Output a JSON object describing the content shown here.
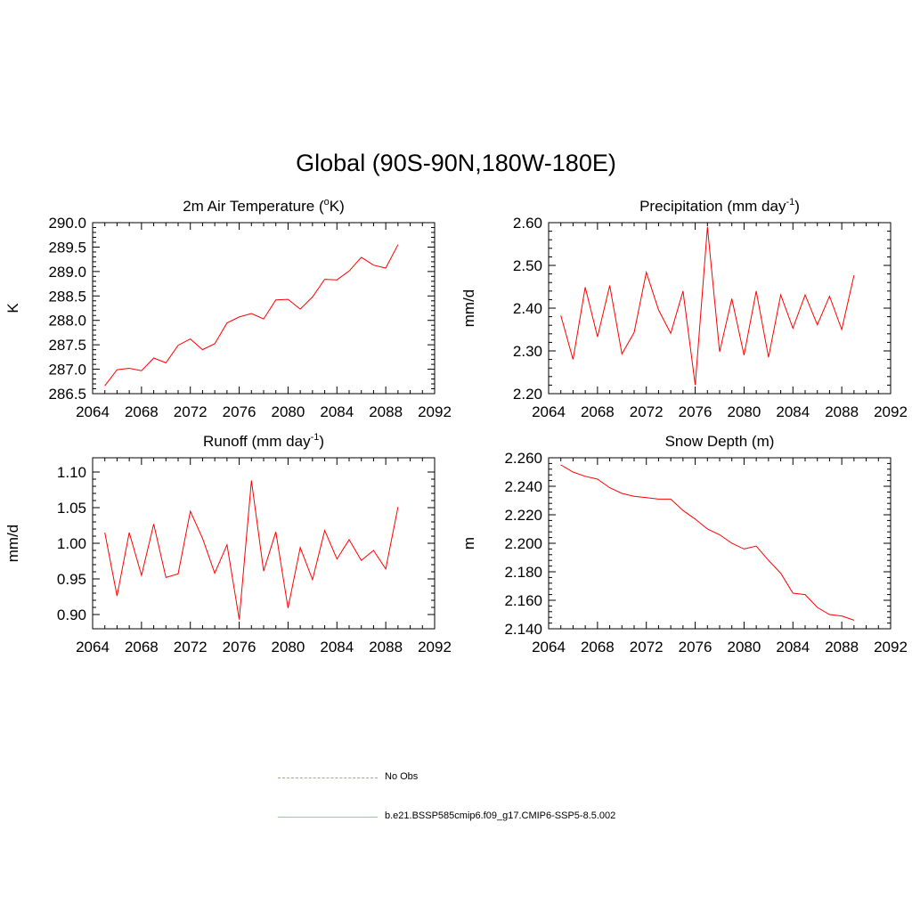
{
  "page": {
    "title": "Global (90S-90N,180W-180E)"
  },
  "legend": {
    "items": [
      {
        "label": "No Obs",
        "color": "#9999ff",
        "style": "dashed"
      },
      {
        "label": "b.e21.BSSP585cmip6.f09_g17.CMIP6-SSP5-8.5.002",
        "color": "#ff9999",
        "style": "solid"
      }
    ]
  },
  "chart_data": [
    {
      "id": "temp",
      "type": "line",
      "title": "2m Air Temperature (",
      "title_sup": "o",
      "title_end": "K)",
      "ylabel": "K",
      "xlim": [
        2064,
        2092
      ],
      "ylim": [
        286.5,
        290.0
      ],
      "xticks": [
        2064,
        2068,
        2072,
        2076,
        2080,
        2084,
        2088,
        2092
      ],
      "yticks": [
        "286.5",
        "287.0",
        "287.5",
        "288.0",
        "288.5",
        "289.0",
        "289.5",
        "290.0"
      ],
      "x": [
        2065,
        2066,
        2067,
        2068,
        2069,
        2070,
        2071,
        2072,
        2073,
        2074,
        2075,
        2076,
        2077,
        2078,
        2079,
        2080,
        2081,
        2082,
        2083,
        2084,
        2085,
        2086,
        2087,
        2088,
        2089
      ],
      "values": [
        286.66,
        286.99,
        287.02,
        286.97,
        287.23,
        287.13,
        287.49,
        287.62,
        287.4,
        287.52,
        287.95,
        288.07,
        288.14,
        288.03,
        288.42,
        288.43,
        288.23,
        288.48,
        288.84,
        288.83,
        289.01,
        289.29,
        289.13,
        289.07,
        289.55
      ],
      "color": "#ff0000"
    },
    {
      "id": "prec",
      "type": "line",
      "title": "Precipitation (mm day",
      "title_sup": "-1",
      "title_end": ")",
      "ylabel": "mm/d",
      "xlim": [
        2064,
        2092
      ],
      "ylim": [
        2.2,
        2.6
      ],
      "xticks": [
        2064,
        2068,
        2072,
        2076,
        2080,
        2084,
        2088,
        2092
      ],
      "yticks": [
        "2.20",
        "2.30",
        "2.40",
        "2.50",
        "2.60"
      ],
      "x": [
        2065,
        2066,
        2067,
        2068,
        2069,
        2070,
        2071,
        2072,
        2073,
        2074,
        2075,
        2076,
        2077,
        2078,
        2079,
        2080,
        2081,
        2082,
        2083,
        2084,
        2085,
        2086,
        2087,
        2088,
        2089
      ],
      "values": [
        2.383,
        2.28,
        2.449,
        2.333,
        2.453,
        2.293,
        2.343,
        2.484,
        2.396,
        2.341,
        2.44,
        2.22,
        2.59,
        2.298,
        2.422,
        2.29,
        2.44,
        2.285,
        2.431,
        2.353,
        2.431,
        2.361,
        2.428,
        2.35,
        2.477
      ],
      "color": "#ff0000"
    },
    {
      "id": "runoff",
      "type": "line",
      "title": "Runoff (mm day",
      "title_sup": "-1",
      "title_end": ")",
      "ylabel": "mm/d",
      "xlim": [
        2064,
        2092
      ],
      "ylim": [
        0.88,
        1.12
      ],
      "xticks": [
        2064,
        2068,
        2072,
        2076,
        2080,
        2084,
        2088,
        2092
      ],
      "yticks": [
        "0.90",
        "0.95",
        "1.00",
        "1.05",
        "1.10"
      ],
      "ytick_values": [
        0.9,
        0.95,
        1.0,
        1.05,
        1.1
      ],
      "x": [
        2065,
        2066,
        2067,
        2068,
        2069,
        2070,
        2071,
        2072,
        2073,
        2074,
        2075,
        2076,
        2077,
        2078,
        2079,
        2080,
        2081,
        2082,
        2083,
        2084,
        2085,
        2086,
        2087,
        2088,
        2089
      ],
      "values": [
        1.015,
        0.926,
        1.015,
        0.955,
        1.027,
        0.952,
        0.957,
        1.045,
        1.007,
        0.958,
        0.998,
        0.893,
        1.088,
        0.961,
        1.016,
        0.909,
        0.994,
        0.949,
        1.018,
        0.978,
        1.005,
        0.976,
        0.99,
        0.964,
        1.051
      ],
      "color": "#ff0000"
    },
    {
      "id": "snow",
      "type": "line",
      "title": "Snow Depth (m)",
      "title_sup": "",
      "title_end": "",
      "ylabel": "m",
      "xlim": [
        2064,
        2092
      ],
      "ylim": [
        2.14,
        2.26
      ],
      "xticks": [
        2064,
        2068,
        2072,
        2076,
        2080,
        2084,
        2088,
        2092
      ],
      "yticks": [
        "2.140",
        "2.160",
        "2.180",
        "2.200",
        "2.220",
        "2.240",
        "2.260"
      ],
      "x": [
        2065,
        2066,
        2067,
        2068,
        2069,
        2070,
        2071,
        2072,
        2073,
        2074,
        2075,
        2076,
        2077,
        2078,
        2079,
        2080,
        2081,
        2082,
        2083,
        2084,
        2085,
        2086,
        2087,
        2088,
        2089
      ],
      "values": [
        2.255,
        2.25,
        2.247,
        2.245,
        2.239,
        2.235,
        2.233,
        2.232,
        2.231,
        2.231,
        2.223,
        2.217,
        2.21,
        2.206,
        2.2,
        2.196,
        2.198,
        2.188,
        2.179,
        2.165,
        2.164,
        2.155,
        2.15,
        2.149,
        2.146
      ],
      "color": "#ff0000"
    }
  ]
}
